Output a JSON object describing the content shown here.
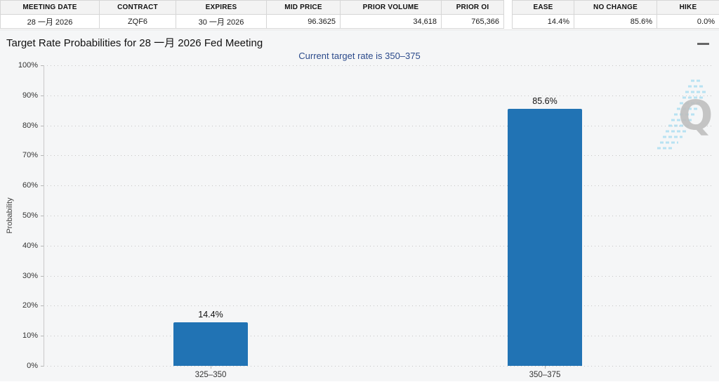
{
  "futures_table": {
    "headers": [
      "MEETING DATE",
      "CONTRACT",
      "EXPIRES",
      "MID PRICE",
      "PRIOR VOLUME",
      "PRIOR OI"
    ],
    "values": [
      "28 一月 2026",
      "ZQF6",
      "30 一月 2026",
      "96.3625",
      "34,618",
      "765,366"
    ]
  },
  "probability_table": {
    "headers": [
      "EASE",
      "NO CHANGE",
      "HIKE"
    ],
    "values": [
      "14.4%",
      "85.6%",
      "0.0%"
    ]
  },
  "chart": {
    "title": "Target Rate Probabilities for 28 一月 2026 Fed Meeting",
    "subtitle": "Current target rate is 350–375",
    "menu_icon": "hamburger-menu"
  },
  "chart_data": {
    "type": "bar",
    "categories": [
      "325–350",
      "350–375"
    ],
    "values": [
      14.4,
      85.6
    ],
    "value_labels": [
      "14.4%",
      "85.6%"
    ],
    "title": "Target Rate Probabilities for 28 一月 2026 Fed Meeting",
    "subtitle": "Current target rate is 350–375",
    "xlabel": "",
    "ylabel": "Probability",
    "ylim": [
      0,
      100
    ],
    "ytick_step": 10,
    "ytick_format": "percent",
    "grid": "dotted-horizontal",
    "legend": "none",
    "bar_color": "#2173b4"
  },
  "colors": {
    "bar": "#2173b4",
    "subtitle_text": "#2b4a8b",
    "chart_background": "#f5f6f7",
    "table_header_background": "#f3f3f3",
    "watermark_gray": "#bfbfbf",
    "watermark_blue": "#b8e2f2"
  }
}
